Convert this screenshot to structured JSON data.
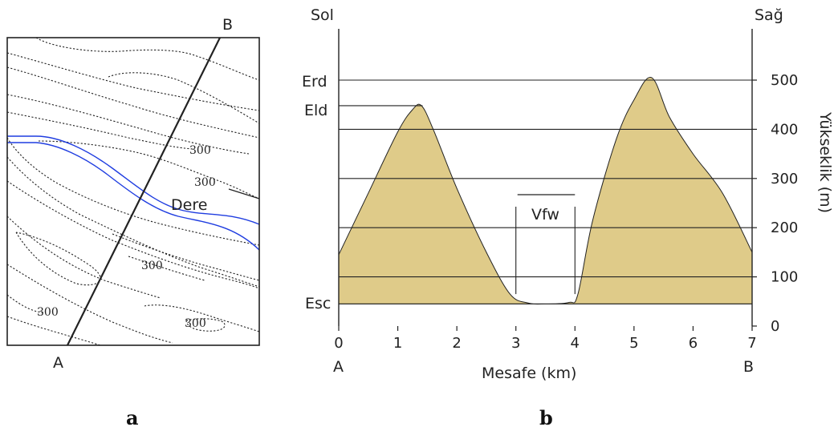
{
  "panel_a": {
    "caption": "a",
    "point_start": "A",
    "point_end": "B",
    "stream_label": "Dere",
    "contour_labels": [
      "300",
      "300",
      "300",
      "300",
      "300"
    ],
    "stream_color": "#1f3de0"
  },
  "panel_b": {
    "caption": "b",
    "left_label": "Sol",
    "right_label": "Sağ",
    "start_label": "A",
    "end_label": "B",
    "levels": {
      "erd": "Erd",
      "eld": "Eld",
      "esc": "Esc"
    },
    "valley_floor_width": "Vfw",
    "fill_color": "#dfcb89"
  },
  "chart_data": {
    "type": "area",
    "title": "",
    "xlabel": "Mesafe (km)",
    "ylabel": "Yükseklik (m)",
    "xlim": [
      0,
      7
    ],
    "ylim": [
      0,
      560
    ],
    "x_ticks": [
      "0",
      "1",
      "2",
      "3",
      "4",
      "5",
      "6",
      "7"
    ],
    "y_ticks": [
      "0",
      "100",
      "200",
      "300",
      "400",
      "500"
    ],
    "grid_levels": [
      45,
      100,
      200,
      300,
      400,
      500
    ],
    "series": [
      {
        "x": [
          0,
          0.5,
          1.0,
          1.25,
          1.4,
          1.6,
          2.0,
          2.5,
          2.9,
          3.2,
          3.5,
          3.9,
          4.05,
          4.3,
          4.7,
          5.0,
          5.3,
          5.6,
          6.0,
          6.5,
          7.0
        ],
        "y": [
          145,
          270,
          395,
          440,
          448,
          400,
          280,
          150,
          65,
          47,
          45,
          48,
          65,
          215,
          380,
          460,
          505,
          425,
          350,
          270,
          150
        ]
      }
    ]
  }
}
